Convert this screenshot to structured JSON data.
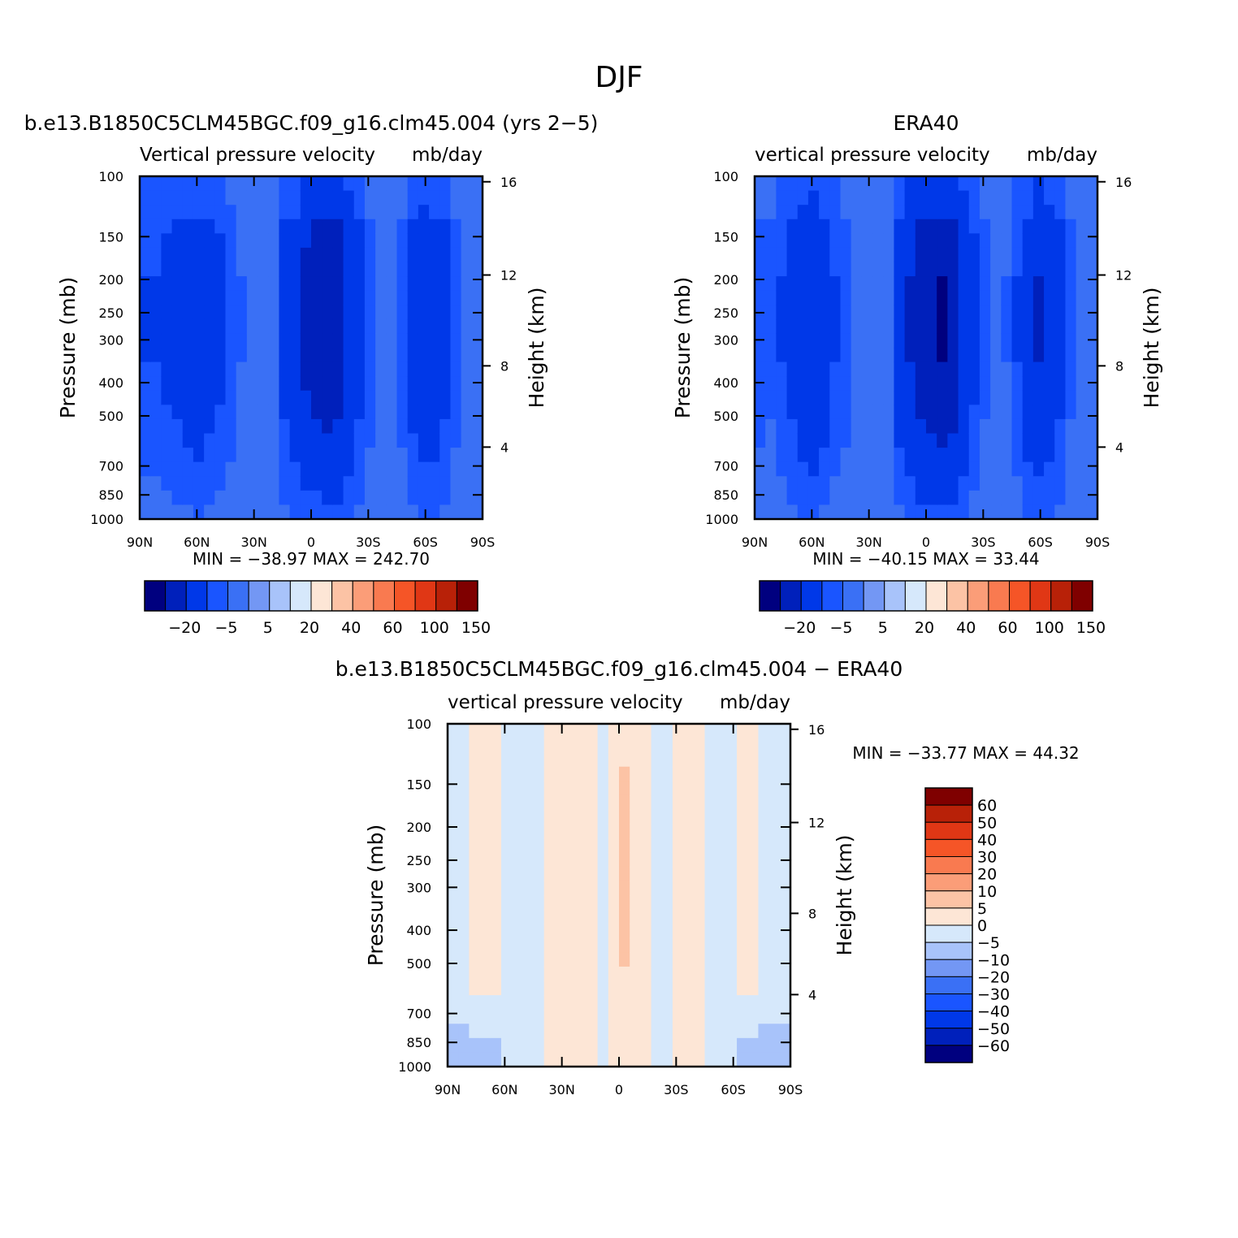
{
  "figure_title": "DJF",
  "chart_data": [
    {
      "type": "heatmap",
      "panel_title": "b.e13.B1850C5CLM45BGC.f09_g16.clm45.004 (yrs 2−5)",
      "left_label": "Vertical pressure velocity",
      "right_label": "mb/day",
      "ylabel": "Pressure (mb)",
      "ylabel_right": "Height (km)",
      "x_ticks": [
        "90N",
        "60N",
        "30N",
        "0",
        "30S",
        "60S",
        "90S"
      ],
      "y_ticks": [
        "100",
        "150",
        "200",
        "250",
        "300",
        "400",
        "500",
        "700",
        "850",
        "1000"
      ],
      "y_ticks_right": [
        "16",
        "12",
        "8",
        "4"
      ],
      "stats": "MIN = −38.97   MAX = 242.70",
      "colorbar_labels": [
        "−20",
        "−5",
        "5",
        "20",
        "40",
        "60",
        "100",
        "150"
      ],
      "colorbar_colors": [
        "#00007f",
        "#0020bb",
        "#0038e8",
        "#1a55ff",
        "#3a70f5",
        "#7397f4",
        "#a8c3fa",
        "#d6e8fb",
        "#fde6d6",
        "#fcc3a5",
        "#fb9d78",
        "#f97a50",
        "#f55527",
        "#e03715",
        "#b82108",
        "#7f0000"
      ],
      "profile": [
        -8,
        -8,
        -9,
        -10,
        -12,
        -13,
        -11,
        -9,
        -7,
        -4,
        -1,
        -1,
        -3,
        -10,
        -13,
        -17,
        -19,
        -22,
        -20,
        -15,
        -10,
        -6,
        -3,
        -3,
        -6,
        -11,
        -14,
        -13,
        -10,
        -6,
        -3,
        -1
      ],
      "z_range": [
        -38.97,
        242.7
      ]
    },
    {
      "type": "heatmap",
      "panel_title": "ERA40",
      "left_label": "vertical pressure velocity",
      "right_label": "mb/day",
      "ylabel": "Pressure (mb)",
      "ylabel_right": "Height (km)",
      "x_ticks": [
        "90N",
        "60N",
        "30N",
        "0",
        "30S",
        "60S",
        "90S"
      ],
      "y_ticks": [
        "100",
        "150",
        "200",
        "250",
        "300",
        "400",
        "500",
        "700",
        "850",
        "1000"
      ],
      "y_ticks_right": [
        "16",
        "12",
        "8",
        "4"
      ],
      "stats": "MIN = −40.15   MAX =  33.44",
      "colorbar_labels": [
        "−20",
        "−5",
        "5",
        "20",
        "40",
        "60",
        "100",
        "150"
      ],
      "colorbar_colors": [
        "#00007f",
        "#0020bb",
        "#0038e8",
        "#1a55ff",
        "#3a70f5",
        "#7397f4",
        "#a8c3fa",
        "#d6e8fb",
        "#fde6d6",
        "#fcc3a5",
        "#fb9d78",
        "#f97a50",
        "#f55527",
        "#e03715",
        "#b82108",
        "#7f0000"
      ],
      "profile": [
        -6,
        -5,
        -8,
        -10,
        -14,
        -15,
        -12,
        -8,
        -6,
        -3,
        -1,
        -1,
        -3,
        -12,
        -16,
        -20,
        -22,
        -24,
        -21,
        -15,
        -9,
        -5,
        -3,
        -4,
        -8,
        -13,
        -16,
        -14,
        -10,
        -5,
        -2,
        -1
      ],
      "z_range": [
        -40.15,
        33.44
      ]
    },
    {
      "type": "heatmap",
      "panel_title": "b.e13.B1850C5CLM45BGC.f09_g16.clm45.004 − ERA40",
      "left_label": "vertical pressure velocity",
      "right_label": "mb/day",
      "ylabel": "Pressure (mb)",
      "ylabel_right": "Height (km)",
      "x_ticks": [
        "90N",
        "60N",
        "30N",
        "0",
        "30S",
        "60S",
        "90S"
      ],
      "y_ticks": [
        "100",
        "150",
        "200",
        "250",
        "300",
        "400",
        "500",
        "700",
        "850",
        "1000"
      ],
      "y_ticks_right": [
        "16",
        "12",
        "8",
        "4"
      ],
      "stats": "MIN = −33.77   MAX =  44.32",
      "colorbar_labels": [
        "60",
        "50",
        "40",
        "30",
        "20",
        "10",
        "5",
        "0",
        "−5",
        "−10",
        "−20",
        "−30",
        "−40",
        "−50",
        "−60"
      ],
      "colorbar_colors": [
        "#7f0000",
        "#b82108",
        "#e03715",
        "#f55527",
        "#f97a50",
        "#fb9d78",
        "#fcc3a5",
        "#fde6d6",
        "#d6e8fb",
        "#a8c3fa",
        "#7397f4",
        "#3a70f5",
        "#1a55ff",
        "#0038e8",
        "#0020bb",
        "#00007f"
      ],
      "profile": [
        -2,
        -2,
        1,
        1,
        1,
        -1,
        -1,
        -2,
        -2,
        1,
        1,
        2,
        2,
        1,
        -1,
        2,
        5,
        3,
        1,
        -1,
        -1,
        1,
        2,
        2,
        -1,
        -2,
        -1,
        1,
        1,
        -1,
        -2,
        -1
      ],
      "z_range": [
        -33.77,
        44.32
      ]
    }
  ]
}
